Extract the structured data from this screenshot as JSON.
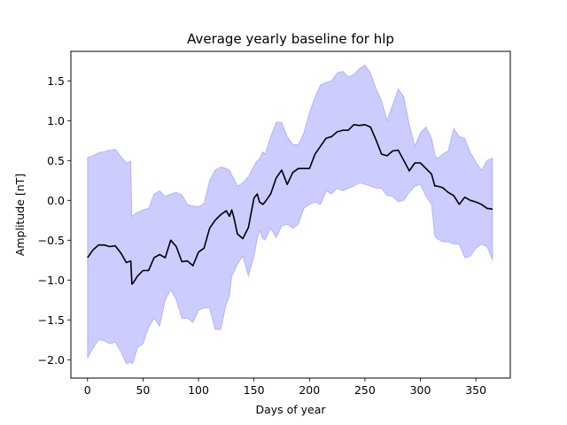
{
  "chart_data": {
    "type": "line",
    "title": "Average yearly baseline for hlp",
    "xlabel": "Days of year",
    "ylabel": "Amplitude [nT]",
    "xlim": [
      -15,
      381
    ],
    "ylim": [
      -2.23,
      1.87
    ],
    "xticks": [
      0,
      50,
      100,
      150,
      200,
      250,
      300,
      350
    ],
    "yticks": [
      -2.0,
      -1.5,
      -1.0,
      -0.5,
      0.0,
      0.5,
      1.0,
      1.5
    ],
    "ytick_labels": [
      "−2.0",
      "−1.5",
      "−1.0",
      "−0.5",
      "0.0",
      "0.5",
      "1.0",
      "1.5"
    ],
    "grid": false,
    "line_color": "#000000",
    "band_color": "#0000ff",
    "band_opacity": 0.2,
    "series": [
      {
        "role": "mean",
        "x": [
          0,
          5,
          10,
          15,
          20,
          25,
          30,
          35,
          39,
          40,
          41,
          45,
          50,
          55,
          60,
          65,
          70,
          75,
          80,
          85,
          90,
          95,
          100,
          105,
          110,
          115,
          120,
          125,
          128,
          130,
          132,
          135,
          140,
          145,
          150,
          153,
          155,
          158,
          160,
          165,
          170,
          175,
          180,
          185,
          190,
          195,
          200,
          205,
          210,
          215,
          220,
          225,
          230,
          235,
          240,
          245,
          250,
          255,
          260,
          265,
          270,
          275,
          280,
          285,
          290,
          295,
          300,
          305,
          310,
          313,
          315,
          320,
          325,
          330,
          335,
          340,
          345,
          350,
          355,
          360,
          365
        ],
        "y": [
          -0.72,
          -0.62,
          -0.56,
          -0.56,
          -0.58,
          -0.57,
          -0.66,
          -0.78,
          -0.76,
          -1.05,
          -1.04,
          -0.95,
          -0.88,
          -0.88,
          -0.72,
          -0.68,
          -0.72,
          -0.5,
          -0.58,
          -0.77,
          -0.76,
          -0.82,
          -0.65,
          -0.6,
          -0.35,
          -0.25,
          -0.18,
          -0.13,
          -0.2,
          -0.12,
          -0.22,
          -0.42,
          -0.48,
          -0.34,
          0.03,
          0.08,
          -0.02,
          -0.05,
          -0.02,
          0.08,
          0.28,
          0.38,
          0.2,
          0.35,
          0.4,
          0.4,
          0.4,
          0.58,
          0.68,
          0.78,
          0.8,
          0.86,
          0.88,
          0.88,
          0.95,
          0.94,
          0.95,
          0.92,
          0.76,
          0.58,
          0.56,
          0.62,
          0.63,
          0.5,
          0.37,
          0.47,
          0.47,
          0.4,
          0.33,
          0.18,
          0.18,
          0.16,
          0.1,
          0.06,
          -0.05,
          0.04,
          0.0,
          -0.02,
          -0.05,
          -0.1,
          -0.11
        ]
      },
      {
        "role": "upper_bound",
        "x": [
          0,
          5,
          10,
          15,
          20,
          25,
          30,
          35,
          39,
          40,
          41,
          45,
          50,
          55,
          60,
          65,
          70,
          75,
          80,
          85,
          90,
          95,
          100,
          105,
          110,
          115,
          120,
          125,
          128,
          130,
          132,
          135,
          140,
          145,
          150,
          153,
          155,
          158,
          160,
          165,
          170,
          175,
          180,
          185,
          190,
          195,
          200,
          205,
          210,
          215,
          220,
          225,
          230,
          235,
          240,
          245,
          250,
          255,
          260,
          265,
          270,
          275,
          280,
          285,
          290,
          295,
          300,
          305,
          310,
          313,
          315,
          320,
          325,
          330,
          335,
          340,
          345,
          350,
          355,
          360,
          365
        ],
        "y": [
          0.54,
          0.56,
          0.6,
          0.61,
          0.63,
          0.64,
          0.55,
          0.47,
          0.49,
          -0.2,
          -0.19,
          -0.15,
          -0.12,
          -0.1,
          0.08,
          0.12,
          0.05,
          0.08,
          0.1,
          0.07,
          -0.05,
          -0.07,
          -0.08,
          -0.04,
          0.25,
          0.38,
          0.42,
          0.4,
          0.38,
          0.32,
          0.27,
          0.18,
          0.22,
          0.3,
          0.43,
          0.5,
          0.52,
          0.61,
          0.58,
          0.8,
          0.98,
          0.98,
          0.8,
          0.7,
          0.7,
          0.85,
          1.1,
          1.3,
          1.45,
          1.48,
          1.5,
          1.6,
          1.62,
          1.55,
          1.58,
          1.65,
          1.7,
          1.6,
          1.4,
          1.25,
          1.0,
          1.2,
          1.4,
          1.3,
          0.95,
          0.68,
          0.85,
          0.92,
          0.78,
          0.58,
          0.52,
          0.58,
          0.62,
          0.9,
          0.8,
          0.78,
          0.6,
          0.48,
          0.38,
          0.5,
          0.53
        ]
      },
      {
        "role": "lower_bound",
        "x": [
          0,
          5,
          10,
          15,
          20,
          25,
          30,
          35,
          39,
          40,
          41,
          45,
          50,
          55,
          60,
          65,
          70,
          75,
          80,
          85,
          90,
          95,
          100,
          105,
          110,
          115,
          120,
          125,
          128,
          130,
          132,
          135,
          140,
          145,
          150,
          153,
          155,
          158,
          160,
          165,
          170,
          175,
          180,
          185,
          190,
          195,
          200,
          205,
          210,
          215,
          220,
          225,
          230,
          235,
          240,
          245,
          250,
          255,
          260,
          265,
          270,
          275,
          280,
          285,
          290,
          295,
          300,
          305,
          310,
          313,
          315,
          320,
          325,
          330,
          335,
          340,
          345,
          350,
          355,
          360,
          365
        ],
        "y": [
          -1.98,
          -1.85,
          -1.75,
          -1.76,
          -1.8,
          -1.78,
          -1.9,
          -2.05,
          -2.03,
          -2.05,
          -2.04,
          -1.85,
          -1.8,
          -1.6,
          -1.48,
          -1.58,
          -1.25,
          -1.12,
          -1.25,
          -1.48,
          -1.48,
          -1.53,
          -1.38,
          -1.35,
          -1.35,
          -1.62,
          -1.62,
          -1.3,
          -1.2,
          -0.95,
          -0.9,
          -0.8,
          -0.7,
          -0.95,
          -0.7,
          -0.48,
          -0.38,
          -0.48,
          -0.5,
          -0.35,
          -0.47,
          -0.32,
          -0.3,
          -0.35,
          -0.3,
          -0.1,
          -0.05,
          -0.02,
          -0.05,
          0.12,
          0.08,
          0.15,
          0.12,
          0.15,
          0.18,
          0.22,
          0.2,
          0.18,
          0.15,
          0.15,
          0.06,
          0.05,
          -0.02,
          0.0,
          0.1,
          0.18,
          0.2,
          0.05,
          -0.05,
          -0.45,
          -0.48,
          -0.52,
          -0.52,
          -0.55,
          -0.55,
          -0.72,
          -0.7,
          -0.6,
          -0.55,
          -0.58,
          -0.75
        ]
      }
    ]
  }
}
